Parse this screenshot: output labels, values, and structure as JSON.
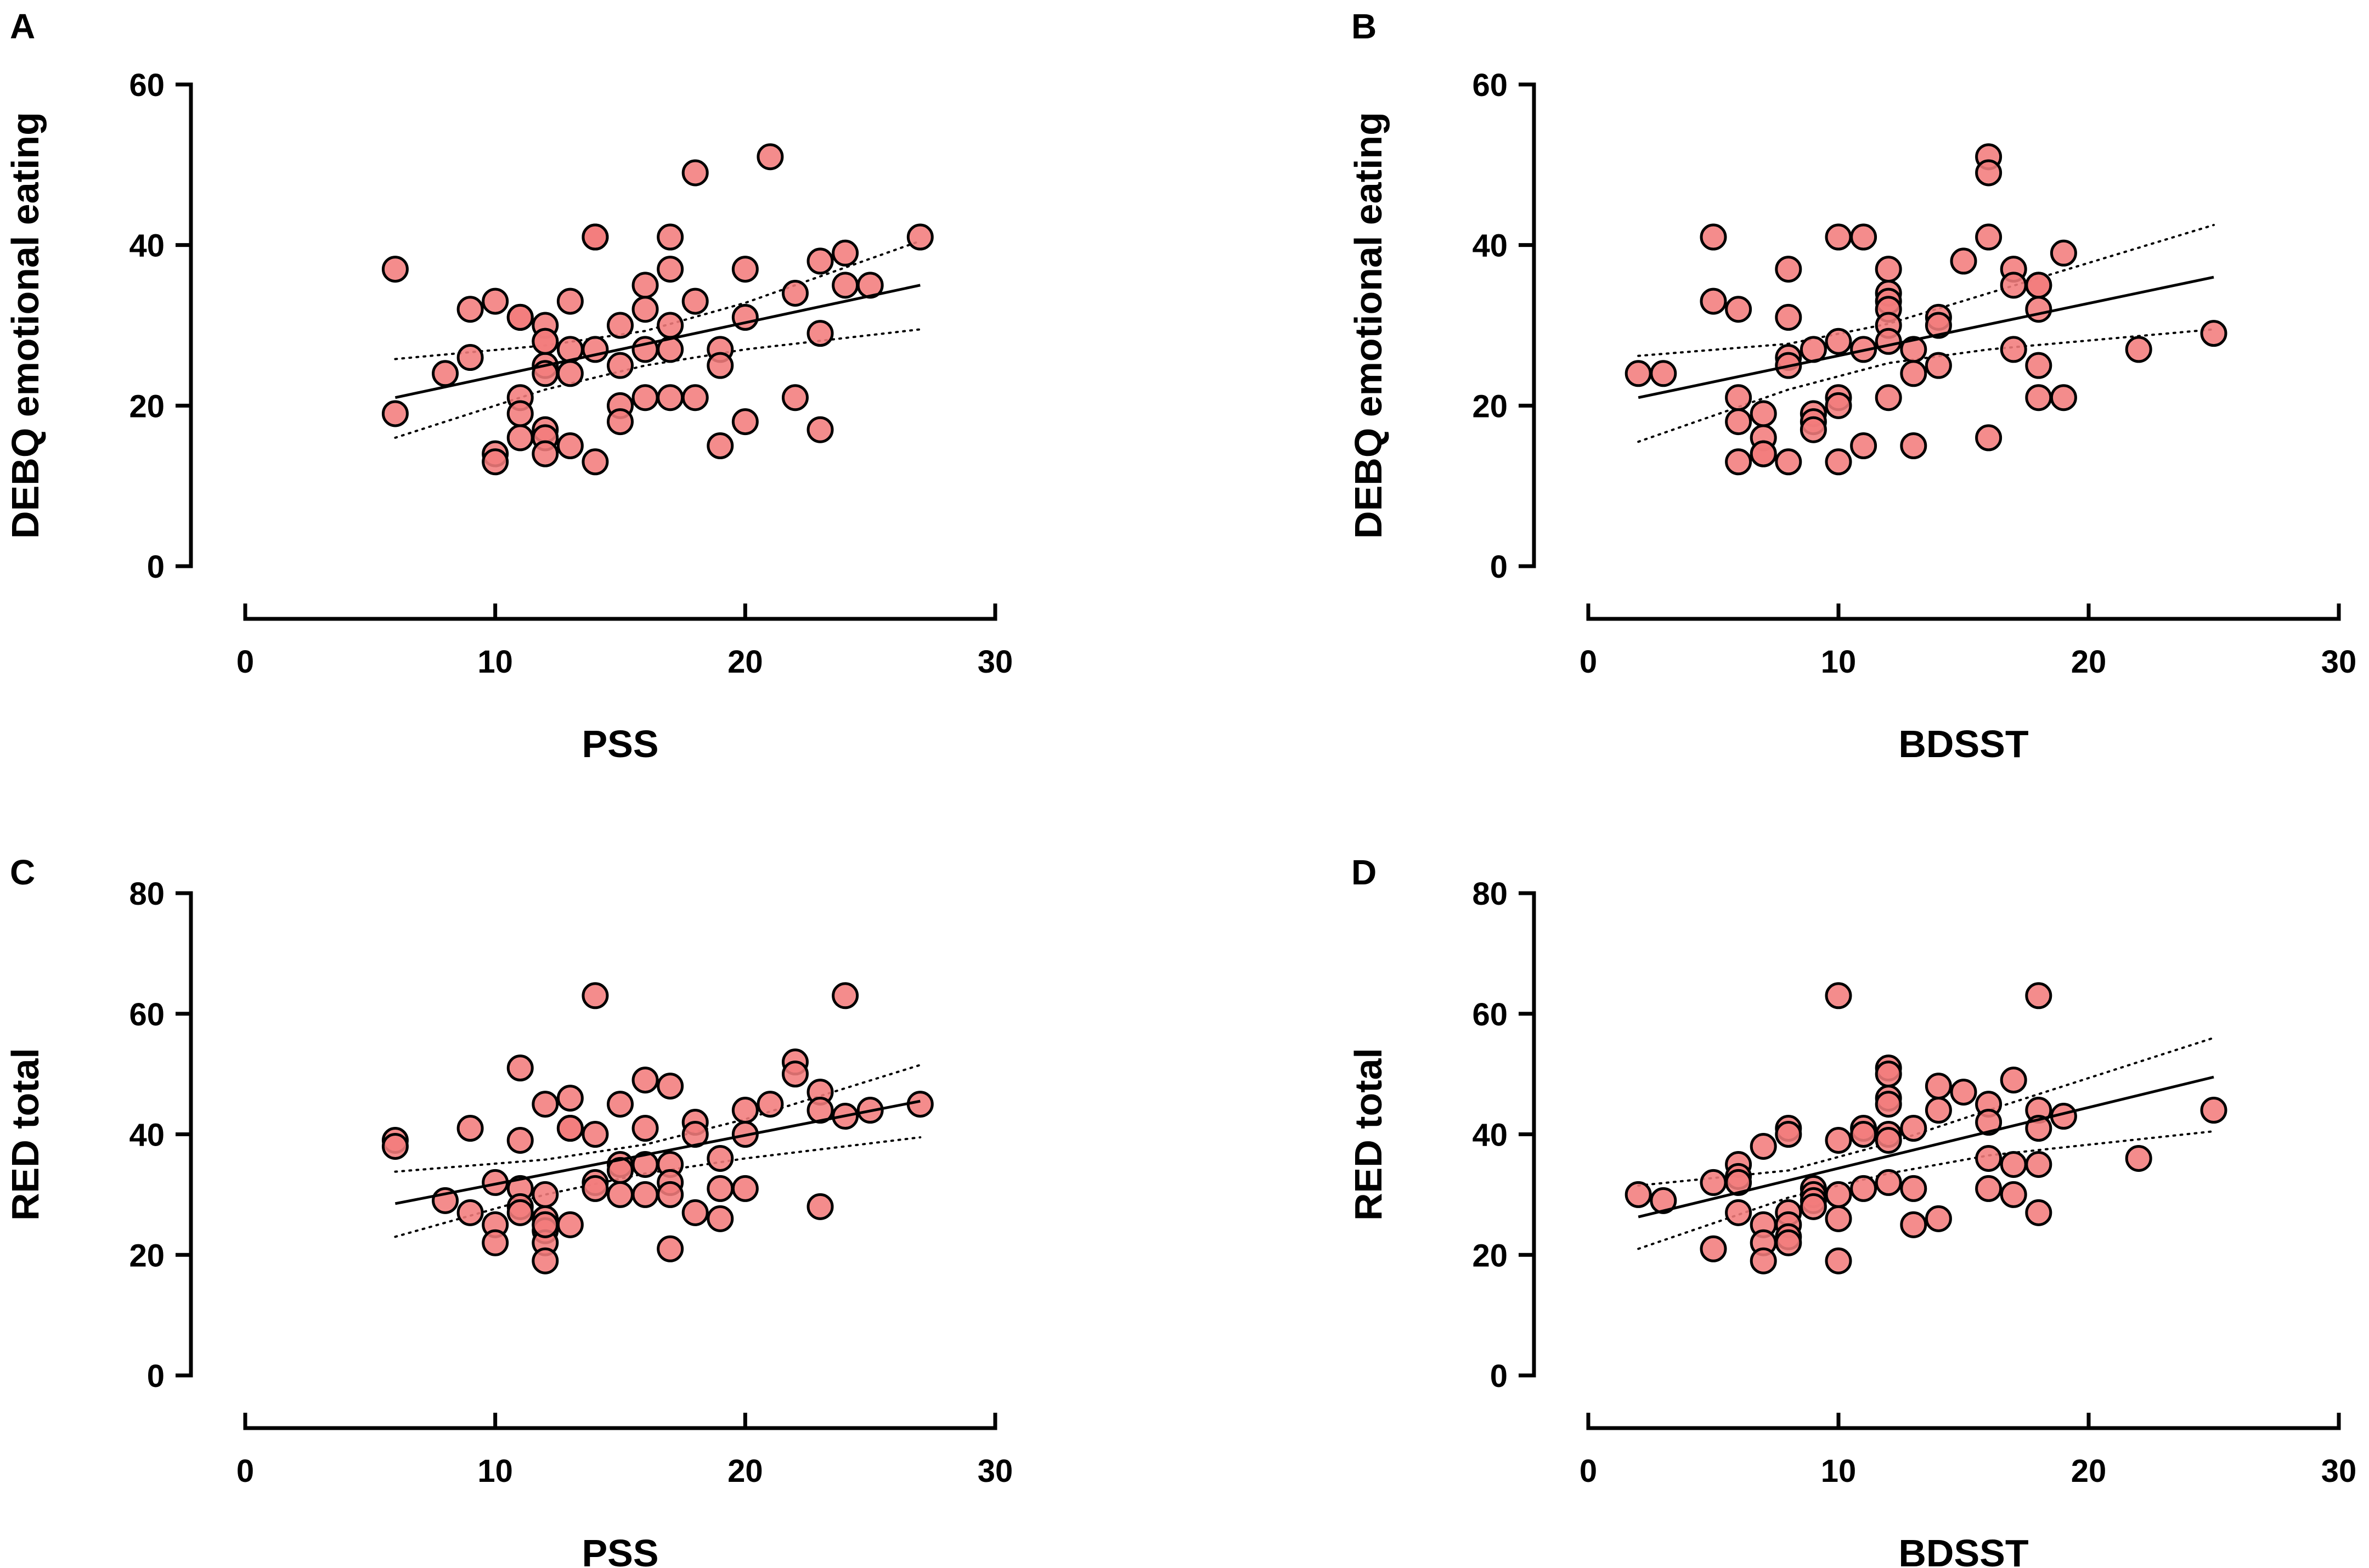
{
  "figure": {
    "panel_count": 4
  },
  "colors": {
    "point_fill": "#f27c7c",
    "point_stroke": "#000000",
    "line": "#000000"
  },
  "chart_data": [
    {
      "type": "scatter",
      "panel": "A",
      "xlabel": "PSS",
      "ylabel": "DEBQ emotional eating",
      "xlim": [
        0,
        30
      ],
      "ylim": [
        0,
        60
      ],
      "xticks": [
        0,
        10,
        20,
        30
      ],
      "yticks": [
        0,
        20,
        40,
        60
      ],
      "grid": false,
      "x": [
        6,
        6,
        8,
        9,
        9,
        10,
        10,
        10,
        11,
        11,
        11,
        11,
        11,
        12,
        12,
        12,
        12,
        12,
        12,
        12,
        12,
        13,
        13,
        13,
        13,
        14,
        14,
        14,
        14,
        15,
        15,
        15,
        15,
        16,
        16,
        16,
        16,
        17,
        17,
        17,
        17,
        17,
        18,
        18,
        18,
        19,
        19,
        19,
        20,
        20,
        20,
        21,
        22,
        22,
        23,
        23,
        23,
        24,
        24,
        25,
        27
      ],
      "y": [
        37,
        19,
        24,
        32,
        26,
        33,
        14,
        13,
        31,
        21,
        19,
        16,
        31,
        30,
        28,
        25,
        24,
        17,
        16,
        14,
        28,
        33,
        27,
        24,
        15,
        41,
        41,
        27,
        13,
        30,
        20,
        18,
        25,
        35,
        32,
        27,
        21,
        41,
        37,
        30,
        27,
        21,
        49,
        33,
        21,
        27,
        25,
        15,
        37,
        31,
        18,
        51,
        34,
        21,
        38,
        29,
        17,
        39,
        35,
        35,
        41
      ],
      "fit_line": {
        "x": [
          6,
          27
        ],
        "y": [
          21.0,
          35.0
        ]
      },
      "ci_lower": {
        "x": [
          6,
          12,
          16,
          20,
          27
        ],
        "y": [
          16.0,
          22.0,
          25.0,
          27.0,
          29.5
        ]
      },
      "ci_upper": {
        "x": [
          6,
          12,
          16,
          20,
          27
        ],
        "y": [
          25.8,
          27.5,
          29.3,
          32.8,
          40.5
        ]
      }
    },
    {
      "type": "scatter",
      "panel": "B",
      "xlabel": "BDSST",
      "ylabel": "DEBQ emotional eating",
      "xlim": [
        0,
        30
      ],
      "ylim": [
        0,
        60
      ],
      "xticks": [
        0,
        10,
        20,
        30
      ],
      "yticks": [
        0,
        20,
        40,
        60
      ],
      "grid": false,
      "x": [
        2,
        3,
        5,
        5,
        6,
        6,
        6,
        6,
        7,
        7,
        7,
        7,
        8,
        8,
        8,
        8,
        8,
        9,
        9,
        9,
        9,
        10,
        10,
        10,
        10,
        10,
        11,
        11,
        11,
        12,
        12,
        12,
        12,
        12,
        12,
        12,
        13,
        13,
        13,
        14,
        14,
        14,
        15,
        16,
        16,
        16,
        16,
        17,
        17,
        17,
        18,
        18,
        18,
        18,
        18,
        19,
        19,
        22,
        25
      ],
      "y": [
        24,
        24,
        41,
        33,
        32,
        21,
        18,
        13,
        19,
        16,
        14,
        14,
        37,
        31,
        26,
        25,
        13,
        27,
        19,
        18,
        17,
        41,
        28,
        21,
        20,
        13,
        41,
        27,
        15,
        37,
        34,
        33,
        32,
        30,
        28,
        21,
        27,
        24,
        15,
        31,
        30,
        25,
        38,
        51,
        49,
        41,
        16,
        37,
        35,
        27,
        35,
        35,
        32,
        25,
        21,
        39,
        21,
        27,
        29
      ],
      "fit_line": {
        "x": [
          2,
          25
        ],
        "y": [
          21.0,
          36.0
        ]
      },
      "ci_lower": {
        "x": [
          2,
          8,
          12,
          16,
          25
        ],
        "y": [
          15.5,
          22.0,
          25.3,
          27.0,
          29.5
        ]
      },
      "ci_upper": {
        "x": [
          2,
          8,
          12,
          16,
          25
        ],
        "y": [
          26.2,
          27.7,
          30.2,
          34.0,
          42.5
        ]
      }
    },
    {
      "type": "scatter",
      "panel": "C",
      "xlabel": "PSS",
      "ylabel": "RED total",
      "xlim": [
        0,
        30
      ],
      "ylim": [
        0,
        80
      ],
      "xticks": [
        0,
        10,
        20,
        30
      ],
      "yticks": [
        0,
        20,
        40,
        60,
        80
      ],
      "grid": false,
      "x": [
        6,
        6,
        8,
        9,
        9,
        10,
        10,
        10,
        11,
        11,
        11,
        11,
        11,
        12,
        12,
        12,
        12,
        12,
        12,
        12,
        12,
        13,
        13,
        13,
        13,
        14,
        14,
        14,
        14,
        15,
        15,
        15,
        15,
        16,
        16,
        16,
        16,
        17,
        17,
        17,
        17,
        17,
        18,
        18,
        18,
        19,
        19,
        19,
        20,
        20,
        20,
        21,
        22,
        22,
        23,
        23,
        23,
        24,
        24,
        25,
        27
      ],
      "y": [
        39,
        38,
        29,
        41,
        27,
        32,
        25,
        22,
        51,
        39,
        31,
        28,
        27,
        45,
        30,
        26,
        25,
        24,
        22,
        19,
        25,
        46,
        41,
        41,
        25,
        63,
        40,
        32,
        31,
        45,
        35,
        34,
        30,
        49,
        41,
        35,
        30,
        48,
        35,
        32,
        30,
        21,
        42,
        40,
        27,
        36,
        31,
        26,
        44,
        40,
        31,
        45,
        52,
        50,
        47,
        44,
        28,
        63,
        43,
        44,
        45
      ],
      "fit_line": {
        "x": [
          6,
          27
        ],
        "y": [
          28.5,
          45.5
        ]
      },
      "ci_lower": {
        "x": [
          6,
          12,
          16,
          20,
          27
        ],
        "y": [
          23.0,
          30.0,
          33.5,
          36.0,
          39.5
        ]
      },
      "ci_upper": {
        "x": [
          6,
          12,
          16,
          20,
          27
        ],
        "y": [
          33.8,
          35.8,
          38.3,
          42.5,
          51.5
        ]
      }
    },
    {
      "type": "scatter",
      "panel": "D",
      "xlabel": "BDSST",
      "ylabel": "RED total",
      "xlim": [
        0,
        30
      ],
      "ylim": [
        0,
        80
      ],
      "xticks": [
        0,
        10,
        20,
        30
      ],
      "yticks": [
        0,
        20,
        40,
        60,
        80
      ],
      "grid": false,
      "x": [
        2,
        3,
        5,
        5,
        6,
        6,
        6,
        6,
        7,
        7,
        7,
        7,
        8,
        8,
        8,
        8,
        8,
        8,
        9,
        9,
        9,
        9,
        10,
        10,
        10,
        10,
        10,
        11,
        11,
        11,
        12,
        12,
        12,
        12,
        12,
        12,
        12,
        13,
        13,
        13,
        14,
        14,
        14,
        15,
        16,
        16,
        16,
        16,
        17,
        17,
        17,
        18,
        18,
        18,
        18,
        18,
        19,
        22,
        25
      ],
      "y": [
        30,
        29,
        32,
        21,
        35,
        33,
        32,
        27,
        38,
        25,
        22,
        19,
        41,
        40,
        27,
        25,
        23,
        22,
        31,
        30,
        29,
        28,
        63,
        39,
        30,
        26,
        19,
        41,
        40,
        31,
        51,
        50,
        46,
        45,
        40,
        39,
        32,
        41,
        31,
        25,
        48,
        44,
        26,
        47,
        45,
        42,
        36,
        31,
        49,
        35,
        30,
        63,
        44,
        41,
        35,
        27,
        43,
        36,
        44
      ],
      "fit_line": {
        "x": [
          2,
          25
        ],
        "y": [
          26.3,
          49.5
        ]
      },
      "ci_lower": {
        "x": [
          2,
          8,
          12,
          16,
          25
        ],
        "y": [
          21.0,
          29.5,
          33.5,
          36.5,
          40.5
        ]
      },
      "ci_upper": {
        "x": [
          2,
          8,
          12,
          16,
          25
        ],
        "y": [
          31.5,
          34.0,
          38.5,
          44.0,
          56.0
        ]
      }
    }
  ]
}
